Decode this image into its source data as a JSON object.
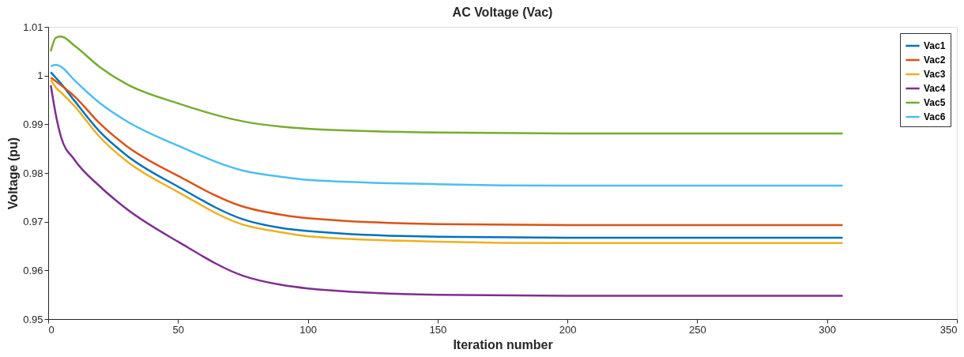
{
  "chart_data": {
    "type": "line",
    "title": "AC Voltage (Vac)",
    "xlabel": "Iteration number",
    "ylabel": "Voltage (pu)",
    "x": [
      1,
      3,
      5,
      10,
      20,
      30,
      50,
      75,
      90,
      100,
      150,
      200,
      250,
      306
    ],
    "series": [
      {
        "name": "Vac1",
        "color": "#0072bd",
        "values": [
          1.0007,
          0.9995,
          0.9983,
          0.9949,
          0.9884,
          0.9837,
          0.9772,
          0.9705,
          0.9687,
          0.9681,
          0.9669,
          0.9667,
          0.9667,
          0.9667
        ]
      },
      {
        "name": "Vac2",
        "color": "#d95319",
        "values": [
          0.9996,
          0.9988,
          0.998,
          0.9958,
          0.9901,
          0.9856,
          0.9794,
          0.9731,
          0.9714,
          0.9707,
          0.9695,
          0.9693,
          0.9693,
          0.9693
        ]
      },
      {
        "name": "Vac3",
        "color": "#edb120",
        "values": [
          0.9991,
          0.9975,
          0.9965,
          0.9938,
          0.9873,
          0.9825,
          0.9761,
          0.9694,
          0.9678,
          0.967,
          0.9659,
          0.9656,
          0.9656,
          0.9656
        ]
      },
      {
        "name": "Vac4",
        "color": "#7e2f8e",
        "values": [
          0.998,
          0.9918,
          0.9873,
          0.9828,
          0.9772,
          0.9727,
          0.9659,
          0.9589,
          0.957,
          0.9563,
          0.955,
          0.9548,
          0.9548,
          0.9548
        ]
      },
      {
        "name": "Vac5",
        "color": "#77ac30",
        "values": [
          1.005,
          1.0078,
          1.008,
          1.0062,
          1.0017,
          0.9983,
          0.9943,
          0.9906,
          0.9895,
          0.9891,
          0.9883,
          0.9881,
          0.9881,
          0.9881
        ]
      },
      {
        "name": "Vac6",
        "color": "#4dbeee",
        "values": [
          1.0019,
          1.0022,
          1.0018,
          0.9991,
          0.9943,
          0.9907,
          0.9856,
          0.9805,
          0.9792,
          0.9786,
          0.9777,
          0.9774,
          0.9774,
          0.9774
        ]
      }
    ],
    "xlim": [
      0,
      350
    ],
    "xticks": [
      0,
      50,
      100,
      150,
      200,
      250,
      300,
      350
    ],
    "ylim": [
      0.95,
      1.01
    ],
    "yticks": [
      0.95,
      0.96,
      0.97,
      0.98,
      0.99,
      1,
      1.01
    ],
    "grid": false,
    "legend": "top right",
    "marker": "none",
    "line_style": "solid"
  }
}
